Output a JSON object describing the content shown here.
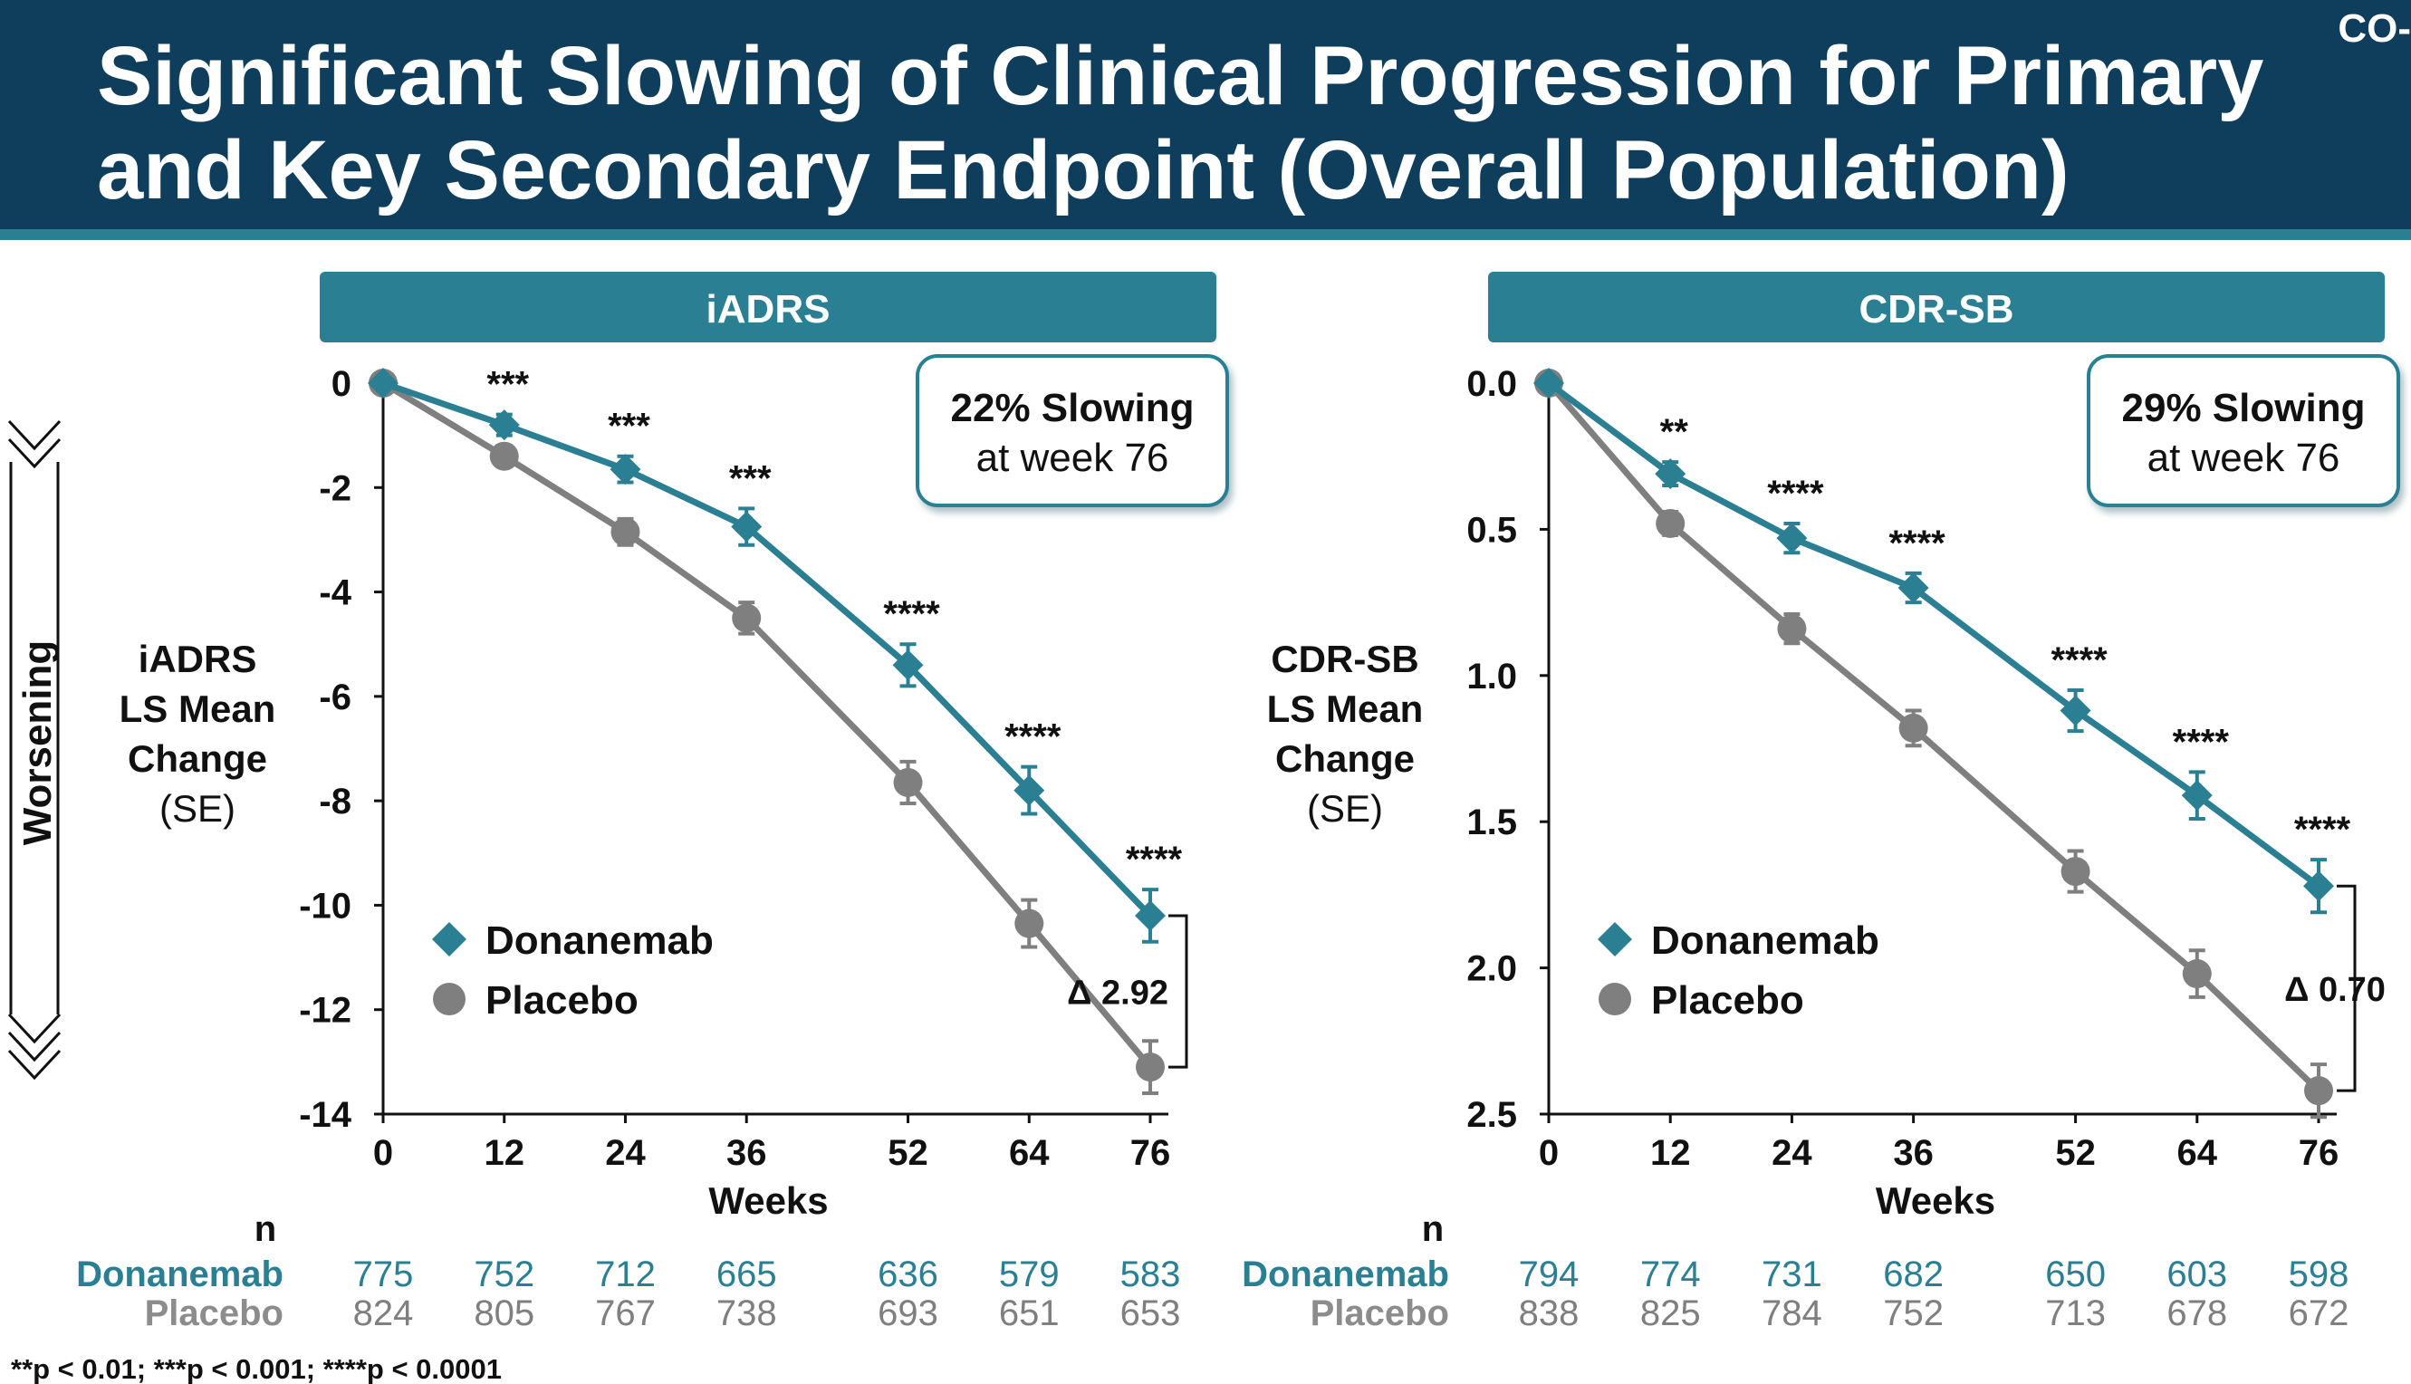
{
  "title": {
    "line1": "Significant Slowing of Clinical Progression for Primary",
    "line2": "and Key Secondary Endpoint (Overall Population)",
    "corner_tag": "CO-"
  },
  "colors": {
    "header_bg": "#0e3e5c",
    "teal": "#2b7f93",
    "placebo_gray": "#7f7f7f"
  },
  "worsening_label": "Worsening",
  "chart_data": [
    {
      "type": "line",
      "panel_title": "iADRS",
      "ylabel": [
        "iADRS",
        "LS Mean",
        "Change",
        "(SE)"
      ],
      "xlabel": "Weeks",
      "x": [
        0,
        12,
        24,
        36,
        52,
        64,
        76
      ],
      "x_ticks": [
        "0",
        "12",
        "24",
        "36",
        "52",
        "64",
        "76"
      ],
      "y_ticks": [
        "0",
        "-2",
        "-4",
        "-6",
        "-8",
        "-10",
        "-12",
        "-14"
      ],
      "ylim": [
        -14,
        0
      ],
      "series": [
        {
          "name": "Donanemab",
          "marker": "diamond",
          "color": "#2b7f93",
          "values": [
            0,
            -0.8,
            -1.65,
            -2.75,
            -5.4,
            -7.8,
            -10.2
          ],
          "se": [
            0,
            0.2,
            0.25,
            0.35,
            0.4,
            0.45,
            0.5
          ]
        },
        {
          "name": "Placebo",
          "marker": "circle",
          "color": "#7f7f7f",
          "values": [
            0,
            -1.4,
            -2.85,
            -4.5,
            -7.65,
            -10.35,
            -13.1
          ],
          "se": [
            0,
            0.2,
            0.25,
            0.3,
            0.4,
            0.45,
            0.5
          ]
        }
      ],
      "significance": [
        "",
        "***",
        "***",
        "***",
        "****",
        "****",
        "****"
      ],
      "callout": {
        "line1": "22% Slowing",
        "line2": "at week 76"
      },
      "delta_label": "Δ 2.92",
      "n_table": {
        "header": "n",
        "rows": [
          {
            "label": "Donanemab",
            "values": [
              "775",
              "752",
              "712",
              "665",
              "636",
              "579",
              "583"
            ]
          },
          {
            "label": "Placebo",
            "values": [
              "824",
              "805",
              "767",
              "738",
              "693",
              "651",
              "653"
            ]
          }
        ]
      }
    },
    {
      "type": "line",
      "panel_title": "CDR-SB",
      "ylabel": [
        "CDR-SB",
        "LS Mean",
        "Change",
        "(SE)"
      ],
      "xlabel": "Weeks",
      "x": [
        0,
        12,
        24,
        36,
        52,
        64,
        76
      ],
      "x_ticks": [
        "0",
        "12",
        "24",
        "36",
        "52",
        "64",
        "76"
      ],
      "y_ticks": [
        "0.0",
        "0.5",
        "1.0",
        "1.5",
        "2.0",
        "2.5"
      ],
      "ylim": [
        2.5,
        0
      ],
      "y_inverted": true,
      "series": [
        {
          "name": "Donanemab",
          "marker": "diamond",
          "color": "#2b7f93",
          "values": [
            0,
            0.31,
            0.53,
            0.7,
            1.12,
            1.41,
            1.72
          ],
          "se": [
            0,
            0.04,
            0.05,
            0.05,
            0.07,
            0.08,
            0.09
          ]
        },
        {
          "name": "Placebo",
          "marker": "circle",
          "color": "#7f7f7f",
          "values": [
            0,
            0.48,
            0.84,
            1.18,
            1.67,
            2.02,
            2.42
          ],
          "se": [
            0,
            0.04,
            0.05,
            0.06,
            0.07,
            0.08,
            0.09
          ]
        }
      ],
      "significance": [
        "",
        "**",
        "****",
        "****",
        "****",
        "****",
        "****"
      ],
      "callout": {
        "line1": "29% Slowing",
        "line2": "at week 76"
      },
      "delta_label": "Δ 0.70",
      "n_table": {
        "header": "n",
        "rows": [
          {
            "label": "Donanemab",
            "values": [
              "794",
              "774",
              "731",
              "682",
              "650",
              "603",
              "598"
            ]
          },
          {
            "label": "Placebo",
            "values": [
              "838",
              "825",
              "784",
              "752",
              "713",
              "678",
              "672"
            ]
          }
        ]
      }
    }
  ],
  "footnote": "**p < 0.01; ***p < 0.001; ****p < 0.0001"
}
